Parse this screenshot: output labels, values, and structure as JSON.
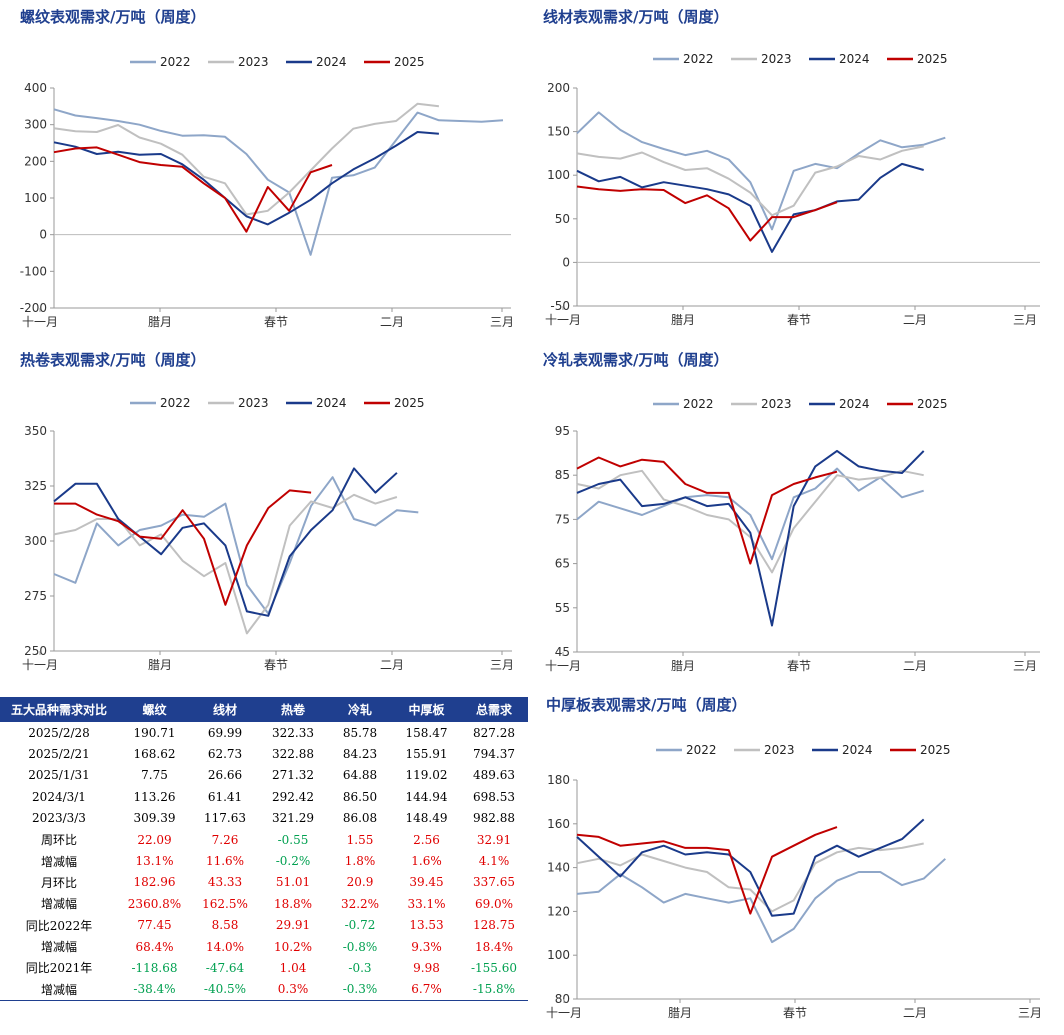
{
  "colors": {
    "2022": "#8ea6c8",
    "2023": "#c0c0c0",
    "2024": "#1a3a8a",
    "2025": "#c00000"
  },
  "series_names": [
    "2022",
    "2023",
    "2024",
    "2025"
  ],
  "x_ticks": [
    "十一月",
    "腊月",
    "春节",
    "二月",
    "三月"
  ],
  "charts": [
    {
      "type": "line",
      "title": "螺纹表观需求/万吨（周度）",
      "ylim": [
        -200,
        400
      ],
      "yticks": [
        -200,
        -100,
        0,
        100,
        200,
        300,
        400
      ],
      "series": [
        {
          "name": "2022",
          "values": [
            342,
            325,
            318,
            310,
            300,
            283,
            270,
            271,
            267,
            220,
            150,
            115,
            -55,
            155,
            162,
            183,
            258,
            333,
            312,
            310,
            308,
            312
          ]
        },
        {
          "name": "2023",
          "values": [
            290,
            282,
            280,
            299,
            265,
            248,
            218,
            158,
            140,
            55,
            65,
            115,
            175,
            235,
            289,
            302,
            310,
            357,
            350
          ]
        },
        {
          "name": "2024",
          "values": [
            252,
            240,
            220,
            226,
            218,
            220,
            192,
            150,
            100,
            50,
            28,
            60,
            95,
            140,
            178,
            208,
            243,
            280,
            275
          ]
        },
        {
          "name": "2025",
          "values": [
            225,
            235,
            238,
            218,
            198,
            190,
            185,
            140,
            100,
            8,
            130,
            65,
            170,
            190
          ]
        }
      ]
    },
    {
      "type": "line",
      "title": "线材表观需求/万吨（周度）",
      "ylim": [
        -50,
        200
      ],
      "yticks": [
        -50,
        0,
        50,
        100,
        150,
        200
      ],
      "series": [
        {
          "name": "2022",
          "values": [
            148,
            172,
            152,
            138,
            130,
            123,
            128,
            118,
            92,
            38,
            105,
            113,
            108,
            125,
            140,
            132,
            135,
            143
          ]
        },
        {
          "name": "2023",
          "values": [
            125,
            121,
            119,
            126,
            115,
            106,
            108,
            96,
            80,
            54,
            65,
            103,
            110,
            122,
            118,
            128,
            133
          ]
        },
        {
          "name": "2024",
          "values": [
            105,
            93,
            98,
            86,
            92,
            88,
            84,
            78,
            65,
            12,
            55,
            60,
            70,
            72,
            97,
            113,
            106
          ]
        },
        {
          "name": "2025",
          "values": [
            87,
            84,
            82,
            84,
            83,
            68,
            77,
            62,
            25,
            52,
            52,
            60,
            69
          ]
        }
      ]
    },
    {
      "type": "line",
      "title": "热卷表观需求/万吨（周度）",
      "ylim": [
        250,
        350
      ],
      "yticks": [
        250,
        275,
        300,
        325,
        350
      ],
      "series": [
        {
          "name": "2022",
          "values": [
            285,
            281,
            308,
            298,
            305,
            307,
            312,
            311,
            317,
            280,
            267,
            290,
            316,
            329,
            310,
            307,
            314,
            313
          ]
        },
        {
          "name": "2023",
          "values": [
            303,
            305,
            310,
            310,
            298,
            303,
            291,
            284,
            290,
            258,
            271,
            307,
            318,
            315,
            321,
            317,
            320
          ]
        },
        {
          "name": "2024",
          "values": [
            318,
            326,
            326,
            310,
            302,
            294,
            306,
            308,
            298,
            268,
            266,
            293,
            305,
            314,
            333,
            322,
            331
          ]
        },
        {
          "name": "2025",
          "values": [
            317,
            317,
            312,
            309,
            302,
            301,
            314,
            301,
            271,
            298,
            315,
            323,
            322
          ]
        }
      ]
    },
    {
      "type": "line",
      "title": "冷轧表观需求/万吨（周度）",
      "ylim": [
        45,
        95
      ],
      "yticks": [
        45,
        55,
        65,
        75,
        85,
        95
      ],
      "series": [
        {
          "name": "2022",
          "values": [
            75,
            79,
            77.5,
            76,
            78,
            80,
            80.5,
            80,
            76,
            66,
            80,
            82,
            86.5,
            81.5,
            84.5,
            80,
            81.5
          ]
        },
        {
          "name": "2023",
          "values": [
            83,
            82,
            85,
            86,
            79.5,
            78,
            76,
            75,
            71,
            63,
            73,
            79,
            85,
            84,
            84.5,
            86,
            85
          ]
        },
        {
          "name": "2024",
          "values": [
            81,
            83,
            84,
            78,
            78.5,
            80,
            78,
            78.5,
            72,
            51,
            78,
            87,
            90.5,
            87,
            86,
            85.5,
            90.5
          ]
        },
        {
          "name": "2025",
          "values": [
            86.5,
            89,
            87,
            88.5,
            88,
            83,
            81,
            81,
            65,
            80.5,
            83,
            84.5,
            85.8
          ]
        }
      ]
    },
    {
      "type": "line",
      "title": "中厚板表观需求/万吨（周度）",
      "ylim": [
        80,
        180
      ],
      "yticks": [
        80,
        100,
        120,
        140,
        160,
        180
      ],
      "series": [
        {
          "name": "2022",
          "values": [
            128,
            129,
            137,
            131,
            124,
            128,
            126,
            124,
            126,
            106,
            112,
            126,
            134,
            138,
            138,
            132,
            135,
            144
          ]
        },
        {
          "name": "2023",
          "values": [
            142,
            144,
            141,
            146,
            143,
            140,
            138,
            131,
            130,
            120,
            125,
            142,
            147,
            149,
            148,
            149,
            151
          ]
        },
        {
          "name": "2024",
          "values": [
            154,
            145,
            136,
            147,
            150,
            146,
            147,
            146,
            138,
            118,
            119,
            145,
            150,
            145,
            149,
            153,
            162
          ]
        },
        {
          "name": "2025",
          "values": [
            155,
            154,
            150,
            151,
            152,
            149,
            149,
            148,
            119,
            145,
            150,
            155,
            158.5
          ]
        }
      ]
    }
  ],
  "table": {
    "headers": [
      "五大品种需求对比",
      "螺纹",
      "线材",
      "热卷",
      "冷轧",
      "中厚板",
      "总需求"
    ],
    "rows": [
      {
        "label": "2025/2/28",
        "cells": [
          "190.71",
          "69.99",
          "322.33",
          "85.78",
          "158.47",
          "827.28"
        ]
      },
      {
        "label": "2025/2/21",
        "cells": [
          "168.62",
          "62.73",
          "322.88",
          "84.23",
          "155.91",
          "794.37"
        ]
      },
      {
        "label": "2025/1/31",
        "cells": [
          "7.75",
          "26.66",
          "271.32",
          "64.88",
          "119.02",
          "489.63"
        ]
      },
      {
        "label": "2024/3/1",
        "cells": [
          "113.26",
          "61.41",
          "292.42",
          "86.50",
          "144.94",
          "698.53"
        ]
      },
      {
        "label": "2023/3/3",
        "cells": [
          "309.39",
          "117.63",
          "321.29",
          "86.08",
          "148.49",
          "982.88"
        ]
      },
      {
        "label": "周环比",
        "cells": [
          "22.09",
          "7.26",
          "-0.55",
          "1.55",
          "2.56",
          "32.91"
        ]
      },
      {
        "label": "增减幅",
        "cells": [
          "13.1%",
          "11.6%",
          "-0.2%",
          "1.8%",
          "1.6%",
          "4.1%"
        ]
      },
      {
        "label": "月环比",
        "cells": [
          "182.96",
          "43.33",
          "51.01",
          "20.9",
          "39.45",
          "337.65"
        ]
      },
      {
        "label": "增减幅",
        "cells": [
          "2360.8%",
          "162.5%",
          "18.8%",
          "32.2%",
          "33.1%",
          "69.0%"
        ]
      },
      {
        "label": "同比2022年",
        "cells": [
          "77.45",
          "8.58",
          "29.91",
          "-0.72",
          "13.53",
          "128.75"
        ]
      },
      {
        "label": "增减幅",
        "cells": [
          "68.4%",
          "14.0%",
          "10.2%",
          "-0.8%",
          "9.3%",
          "18.4%"
        ]
      },
      {
        "label": "同比2021年",
        "cells": [
          "-118.68",
          "-47.64",
          "1.04",
          "-0.3",
          "9.98",
          "-155.60"
        ]
      },
      {
        "label": "增减幅",
        "cells": [
          "-38.4%",
          "-40.5%",
          "0.3%",
          "-0.3%",
          "6.7%",
          "-15.8%"
        ]
      }
    ]
  }
}
